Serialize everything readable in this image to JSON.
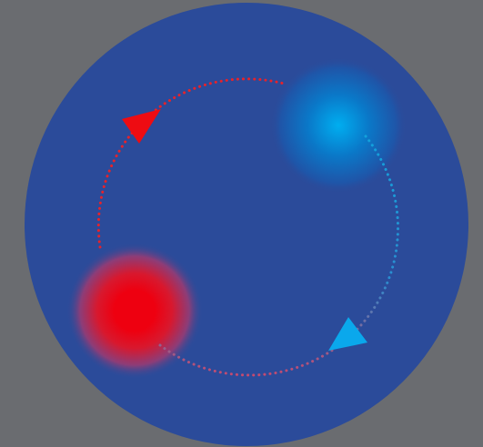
{
  "colors": {
    "page_background": "#6a6c70",
    "disc": "#2b4b9a",
    "blue_spot_core": "#00aef0",
    "blue_spot_mid": "#0a78c8",
    "red_spot_core": "#ee0010",
    "red_spot_mid": "#d8182e",
    "blue_arrow": "#0aa8ec",
    "red_arrow": "#ee0c12",
    "dots_blue": "#12a2dc",
    "dots_red": "#e8222a"
  },
  "elements": {
    "disc": "background-disc",
    "spots": [
      "blue-glow-spot",
      "red-glow-spot"
    ],
    "cycle": {
      "direction": "clockwise-on-screen",
      "segments": [
        "blue-to-red-dotted-arc",
        "red-to-blue-dotted-arc"
      ],
      "arrowheads": [
        "blue-arrowhead",
        "red-arrowhead"
      ]
    }
  }
}
